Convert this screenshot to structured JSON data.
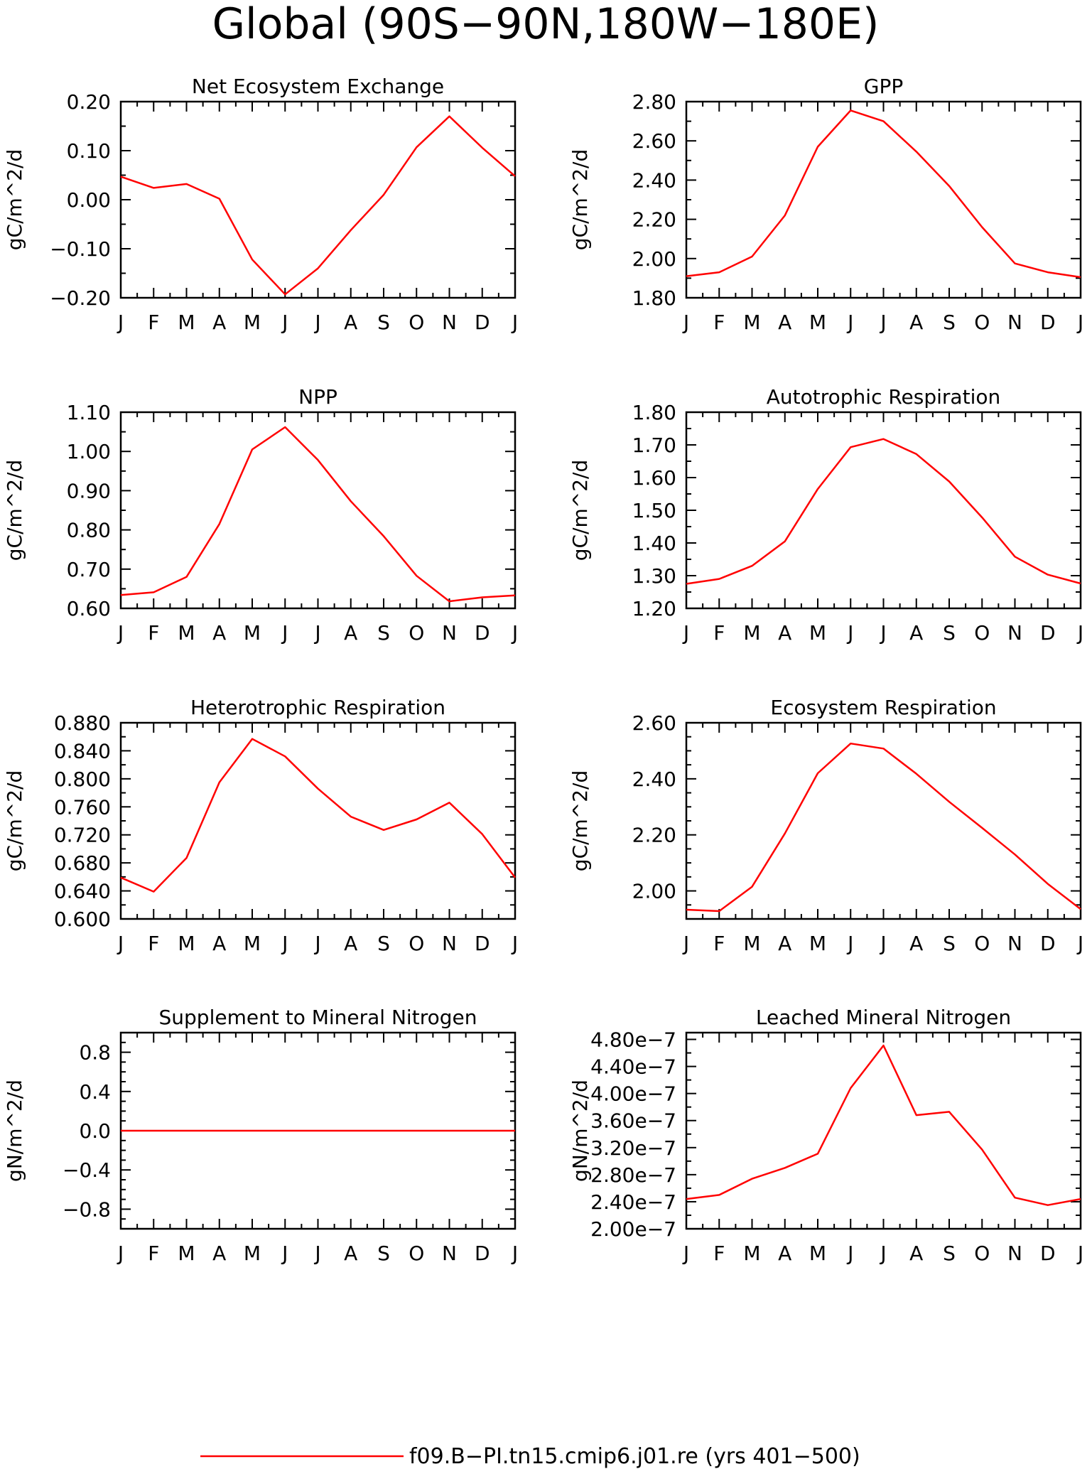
{
  "page_title": "Global (90S−90N,180W−180E)",
  "legend": {
    "label": "f09.B−PI.tn15.cmip6.j01.re (yrs 401−500)",
    "color": "#ff0000"
  },
  "line_color": "#ff0000",
  "months": [
    "J",
    "F",
    "M",
    "A",
    "M",
    "J",
    "J",
    "A",
    "S",
    "O",
    "N",
    "D",
    "J"
  ],
  "chart_data": [
    {
      "type": "line",
      "title": "Net Ecosystem Exchange",
      "ylabel": "gC/m^2/d",
      "ylim": [
        -0.2,
        0.2
      ],
      "yticks": [
        "−0.20",
        "−0.10",
        "0.00",
        "0.10",
        "0.20"
      ],
      "y_minor_per_major": 1,
      "values": [
        0.047,
        0.024,
        0.032,
        0.002,
        -0.122,
        -0.193,
        -0.14,
        -0.062,
        0.01,
        0.107,
        0.17,
        0.106,
        0.048
      ]
    },
    {
      "type": "line",
      "title": "GPP",
      "ylabel": "gC/m^2/d",
      "ylim": [
        1.8,
        2.8
      ],
      "yticks": [
        "1.80",
        "2.00",
        "2.20",
        "2.40",
        "2.60",
        "2.80"
      ],
      "y_minor_per_major": 1,
      "values": [
        1.91,
        1.93,
        2.01,
        2.22,
        2.57,
        2.755,
        2.7,
        2.545,
        2.37,
        2.16,
        1.975,
        1.93,
        1.905
      ]
    },
    {
      "type": "line",
      "title": "NPP",
      "ylabel": "gC/m^2/d",
      "ylim": [
        0.6,
        1.1
      ],
      "yticks": [
        "0.60",
        "0.70",
        "0.80",
        "0.90",
        "1.00",
        "1.10"
      ],
      "y_minor_per_major": 1,
      "values": [
        0.634,
        0.641,
        0.68,
        0.815,
        1.005,
        1.062,
        0.978,
        0.873,
        0.784,
        0.683,
        0.618,
        0.628,
        0.633
      ]
    },
    {
      "type": "line",
      "title": "Autotrophic Respiration",
      "ylabel": "gC/m^2/d",
      "ylim": [
        1.2,
        1.8
      ],
      "yticks": [
        "1.20",
        "1.30",
        "1.40",
        "1.50",
        "1.60",
        "1.70",
        "1.80"
      ],
      "y_minor_per_major": 1,
      "values": [
        1.275,
        1.29,
        1.33,
        1.405,
        1.565,
        1.693,
        1.718,
        1.672,
        1.588,
        1.478,
        1.358,
        1.303,
        1.276
      ]
    },
    {
      "type": "line",
      "title": "Heterotrophic Respiration",
      "ylabel": "gC/m^2/d",
      "ylim": [
        0.6,
        0.88
      ],
      "yticks": [
        "0.600",
        "0.640",
        "0.680",
        "0.720",
        "0.760",
        "0.800",
        "0.840",
        "0.880"
      ],
      "y_minor_per_major": 1,
      "values": [
        0.659,
        0.639,
        0.687,
        0.795,
        0.857,
        0.832,
        0.786,
        0.746,
        0.727,
        0.742,
        0.766,
        0.721,
        0.659
      ]
    },
    {
      "type": "line",
      "title": "Ecosystem Respiration",
      "ylabel": "gC/m^2/d",
      "ylim": [
        1.9,
        2.6
      ],
      "yticks": [
        "2.00",
        "2.20",
        "2.40",
        "2.60"
      ],
      "y_minor_per_major": 3,
      "values": [
        1.933,
        1.928,
        2.015,
        2.205,
        2.42,
        2.526,
        2.508,
        2.418,
        2.318,
        2.225,
        2.13,
        2.025,
        1.935
      ]
    },
    {
      "type": "line",
      "title": "Supplement to Mineral Nitrogen",
      "ylabel": "gN/m^2/d",
      "ylim": [
        -1.0,
        1.0
      ],
      "yticks": [
        "−0.8",
        "−0.4",
        "0.0",
        "0.4",
        "0.8"
      ],
      "ytick_values": [
        -0.8,
        -0.4,
        0.0,
        0.4,
        0.8
      ],
      "y_minor_per_major": 3,
      "values": [
        0,
        0,
        0,
        0,
        0,
        0,
        0,
        0,
        0,
        0,
        0,
        0,
        0
      ]
    },
    {
      "type": "line",
      "title": "Leached Mineral Nitrogen",
      "ylabel": "gN/m^2/d",
      "ylim": [
        2e-07,
        4.9e-07
      ],
      "yticks": [
        "2.00e−7",
        "2.40e−7",
        "2.80e−7",
        "3.20e−7",
        "3.60e−7",
        "4.00e−7",
        "4.40e−7",
        "4.80e−7"
      ],
      "ytick_values": [
        2e-07,
        2.4e-07,
        2.8e-07,
        3.2e-07,
        3.6e-07,
        4e-07,
        4.4e-07,
        4.8e-07
      ],
      "y_minor_per_major": 1,
      "values": [
        2.44e-07,
        2.5e-07,
        2.74e-07,
        2.9e-07,
        3.11e-07,
        4.08e-07,
        4.71e-07,
        3.68e-07,
        3.73e-07,
        3.17e-07,
        2.46e-07,
        2.35e-07,
        2.44e-07
      ]
    }
  ]
}
